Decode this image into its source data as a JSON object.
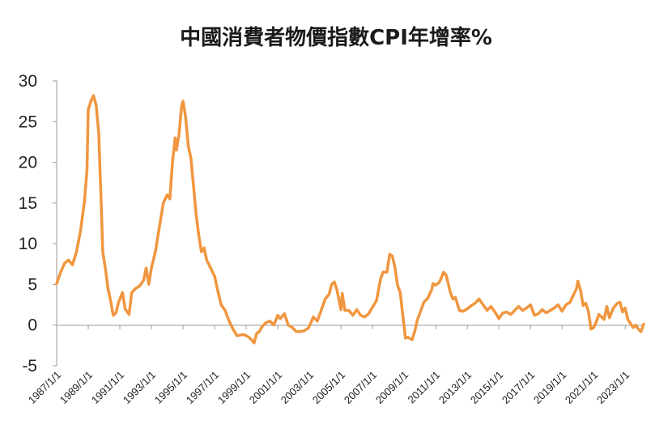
{
  "chart_data": {
    "type": "line",
    "title": "中國消費者物價指數CPI年增率%",
    "xlabel": "",
    "ylabel": "",
    "ylim": [
      -5,
      30
    ],
    "yticks": [
      30,
      25,
      20,
      15,
      10,
      5,
      0,
      -5
    ],
    "x_tick_labels": [
      "1987/1/1",
      "1989/1/1",
      "1991/1/1",
      "1993/1/1",
      "1995/1/1",
      "1997/1/1",
      "1999/1/1",
      "2001/1/1",
      "2003/1/1",
      "2005/1/1",
      "2007/1/1",
      "2009/1/1",
      "2011/1/1",
      "2013/1/1",
      "2015/1/1",
      "2017/1/1",
      "2019/1/1",
      "2021/1/1",
      "2023/1/1"
    ],
    "grid": false,
    "legend": "none",
    "series": [
      {
        "color": "#F0963F",
        "points": [
          [
            "1987/1",
            5.1
          ],
          [
            "1987/4",
            6.5
          ],
          [
            "1987/7",
            7.6
          ],
          [
            "1987/10",
            8.0
          ],
          [
            "1988/1",
            7.4
          ],
          [
            "1988/4",
            9.0
          ],
          [
            "1988/7",
            11.5
          ],
          [
            "1988/10",
            15.0
          ],
          [
            "1988/12",
            19.0
          ],
          [
            "1989/1",
            26.5
          ],
          [
            "1989/3",
            27.5
          ],
          [
            "1989/5",
            28.2
          ],
          [
            "1989/7",
            27.0
          ],
          [
            "1989/9",
            23.5
          ],
          [
            "1989/11",
            14.0
          ],
          [
            "1989/12",
            9.0
          ],
          [
            "1990/2",
            7.0
          ],
          [
            "1990/4",
            4.5
          ],
          [
            "1990/6",
            3.0
          ],
          [
            "1990/8",
            1.2
          ],
          [
            "1990/10",
            1.5
          ],
          [
            "1990/12",
            2.8
          ],
          [
            "1991/3",
            4.0
          ],
          [
            "1991/5",
            2.0
          ],
          [
            "1991/8",
            1.3
          ],
          [
            "1991/10",
            4.0
          ],
          [
            "1992/1",
            4.5
          ],
          [
            "1992/4",
            4.8
          ],
          [
            "1992/7",
            5.5
          ],
          [
            "1992/9",
            7.0
          ],
          [
            "1992/11",
            5.0
          ],
          [
            "1993/1",
            7.0
          ],
          [
            "1993/4",
            9.0
          ],
          [
            "1993/7",
            12.0
          ],
          [
            "1993/10",
            15.0
          ],
          [
            "1994/1",
            16.0
          ],
          [
            "1994/3",
            15.5
          ],
          [
            "1994/5",
            20.0
          ],
          [
            "1994/7",
            23.0
          ],
          [
            "1994/8",
            21.5
          ],
          [
            "1994/10",
            23.5
          ],
          [
            "1994/12",
            27.0
          ],
          [
            "1995/1",
            27.5
          ],
          [
            "1995/3",
            25.5
          ],
          [
            "1995/5",
            22.0
          ],
          [
            "1995/7",
            20.5
          ],
          [
            "1995/9",
            17.0
          ],
          [
            "1995/11",
            13.5
          ],
          [
            "1996/1",
            11.0
          ],
          [
            "1996/3",
            9.0
          ],
          [
            "1996/5",
            9.5
          ],
          [
            "1996/7",
            8.0
          ],
          [
            "1996/10",
            7.0
          ],
          [
            "1997/1",
            6.0
          ],
          [
            "1997/3",
            4.5
          ],
          [
            "1997/6",
            2.5
          ],
          [
            "1997/9",
            1.8
          ],
          [
            "1997/12",
            0.5
          ],
          [
            "1998/3",
            -0.5
          ],
          [
            "1998/6",
            -1.3
          ],
          [
            "1998/9",
            -1.2
          ],
          [
            "1998/12",
            -1.2
          ],
          [
            "1999/3",
            -1.5
          ],
          [
            "1999/5",
            -1.8
          ],
          [
            "1999/7",
            -2.2
          ],
          [
            "1999/9",
            -1.0
          ],
          [
            "1999/11",
            -0.8
          ],
          [
            "2000/1",
            -0.2
          ],
          [
            "2000/4",
            0.3
          ],
          [
            "2000/7",
            0.5
          ],
          [
            "2000/10",
            0.0
          ],
          [
            "2001/1",
            1.2
          ],
          [
            "2001/3",
            0.8
          ],
          [
            "2001/6",
            1.4
          ],
          [
            "2001/9",
            0.0
          ],
          [
            "2001/12",
            -0.3
          ],
          [
            "2002/3",
            -0.8
          ],
          [
            "2002/6",
            -0.8
          ],
          [
            "2002/9",
            -0.7
          ],
          [
            "2002/12",
            -0.4
          ],
          [
            "2003/2",
            0.2
          ],
          [
            "2003/4",
            1.0
          ],
          [
            "2003/7",
            0.5
          ],
          [
            "2003/10",
            1.8
          ],
          [
            "2004/1",
            3.2
          ],
          [
            "2004/4",
            3.8
          ],
          [
            "2004/6",
            5.0
          ],
          [
            "2004/8",
            5.3
          ],
          [
            "2004/10",
            4.3
          ],
          [
            "2005/1",
            1.9
          ],
          [
            "2005/2",
            3.9
          ],
          [
            "2005/4",
            1.8
          ],
          [
            "2005/7",
            1.8
          ],
          [
            "2005/10",
            1.2
          ],
          [
            "2006/1",
            1.9
          ],
          [
            "2006/4",
            1.2
          ],
          [
            "2006/7",
            1.0
          ],
          [
            "2006/10",
            1.4
          ],
          [
            "2007/1",
            2.2
          ],
          [
            "2007/4",
            3.0
          ],
          [
            "2007/7",
            5.6
          ],
          [
            "2007/9",
            6.5
          ],
          [
            "2007/12",
            6.5
          ],
          [
            "2008/2",
            8.7
          ],
          [
            "2008/4",
            8.5
          ],
          [
            "2008/6",
            7.1
          ],
          [
            "2008/8",
            4.9
          ],
          [
            "2008/10",
            4.0
          ],
          [
            "2008/12",
            1.2
          ],
          [
            "2009/2",
            -1.6
          ],
          [
            "2009/4",
            -1.5
          ],
          [
            "2009/7",
            -1.8
          ],
          [
            "2009/9",
            -0.8
          ],
          [
            "2009/11",
            0.6
          ],
          [
            "2010/1",
            1.5
          ],
          [
            "2010/4",
            2.8
          ],
          [
            "2010/7",
            3.3
          ],
          [
            "2010/10",
            4.4
          ],
          [
            "2010/11",
            5.1
          ],
          [
            "2011/1",
            4.9
          ],
          [
            "2011/4",
            5.3
          ],
          [
            "2011/7",
            6.5
          ],
          [
            "2011/9",
            6.1
          ],
          [
            "2011/12",
            4.1
          ],
          [
            "2012/2",
            3.2
          ],
          [
            "2012/4",
            3.4
          ],
          [
            "2012/7",
            1.8
          ],
          [
            "2012/10",
            1.7
          ],
          [
            "2013/1",
            2.0
          ],
          [
            "2013/4",
            2.4
          ],
          [
            "2013/7",
            2.7
          ],
          [
            "2013/10",
            3.2
          ],
          [
            "2014/1",
            2.5
          ],
          [
            "2014/4",
            1.8
          ],
          [
            "2014/7",
            2.3
          ],
          [
            "2014/10",
            1.6
          ],
          [
            "2015/1",
            0.8
          ],
          [
            "2015/4",
            1.5
          ],
          [
            "2015/7",
            1.6
          ],
          [
            "2015/10",
            1.3
          ],
          [
            "2016/1",
            1.8
          ],
          [
            "2016/4",
            2.3
          ],
          [
            "2016/7",
            1.8
          ],
          [
            "2016/10",
            2.1
          ],
          [
            "2017/1",
            2.5
          ],
          [
            "2017/4",
            1.2
          ],
          [
            "2017/7",
            1.4
          ],
          [
            "2017/10",
            1.9
          ],
          [
            "2018/1",
            1.5
          ],
          [
            "2018/4",
            1.8
          ],
          [
            "2018/7",
            2.1
          ],
          [
            "2018/10",
            2.5
          ],
          [
            "2019/1",
            1.7
          ],
          [
            "2019/4",
            2.5
          ],
          [
            "2019/7",
            2.8
          ],
          [
            "2019/10",
            3.8
          ],
          [
            "2019/12",
            4.5
          ],
          [
            "2020/1",
            5.4
          ],
          [
            "2020/3",
            4.3
          ],
          [
            "2020/5",
            2.4
          ],
          [
            "2020/7",
            2.7
          ],
          [
            "2020/9",
            1.7
          ],
          [
            "2020/11",
            -0.5
          ],
          [
            "2021/1",
            -0.3
          ],
          [
            "2021/3",
            0.4
          ],
          [
            "2021/5",
            1.3
          ],
          [
            "2021/7",
            1.0
          ],
          [
            "2021/9",
            0.7
          ],
          [
            "2021/11",
            2.3
          ],
          [
            "2022/1",
            0.9
          ],
          [
            "2022/4",
            2.1
          ],
          [
            "2022/7",
            2.7
          ],
          [
            "2022/9",
            2.8
          ],
          [
            "2022/11",
            1.6
          ],
          [
            "2023/1",
            2.1
          ],
          [
            "2023/3",
            0.7
          ],
          [
            "2023/5",
            0.2
          ],
          [
            "2023/7",
            -0.3
          ],
          [
            "2023/9",
            0.0
          ],
          [
            "2023/11",
            -0.5
          ],
          [
            "2024/1",
            -0.8
          ],
          [
            "2024/3",
            0.1
          ]
        ]
      }
    ]
  }
}
